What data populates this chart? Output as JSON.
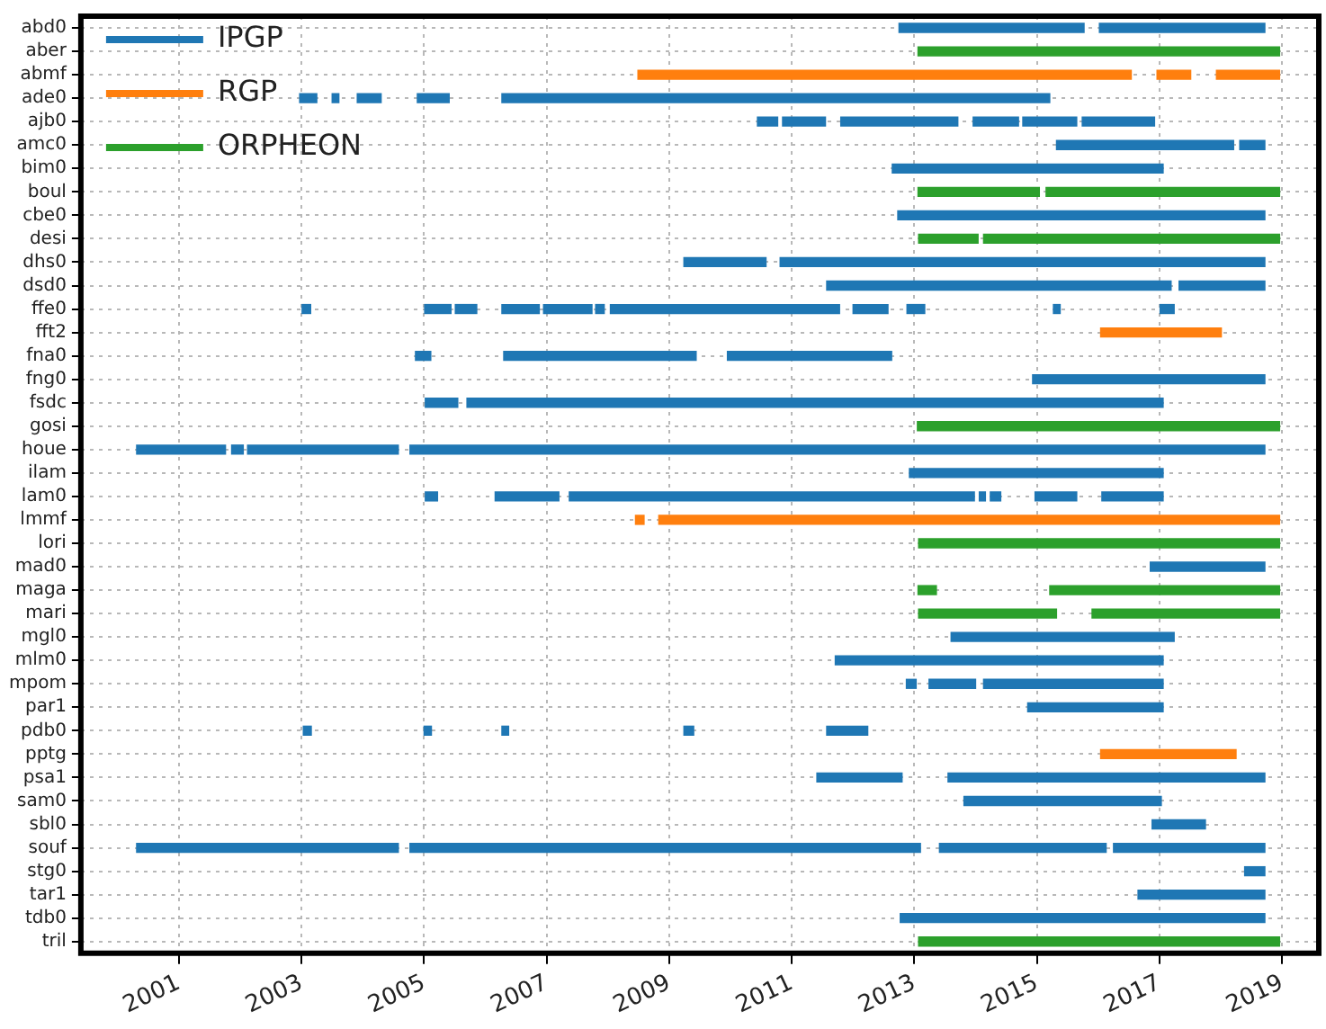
{
  "chart_data": {
    "type": "bar",
    "orientation": "horizontal",
    "legend": "top left",
    "grid": true,
    "categories": [
      "abd0",
      "aber",
      "abmf",
      "ade0",
      "ajb0",
      "amc0",
      "bim0",
      "boul",
      "cbe0",
      "desi",
      "dhs0",
      "dsd0",
      "ffe0",
      "fft2",
      "fna0",
      "fng0",
      "fsdc",
      "gosi",
      "houe",
      "ilam",
      "lam0",
      "lmmf",
      "lori",
      "mad0",
      "maga",
      "mari",
      "mgl0",
      "mlm0",
      "mpom",
      "par1",
      "pdb0",
      "pptg",
      "psa1",
      "sam0",
      "sbl0",
      "souf",
      "stg0",
      "tar1",
      "tdb0",
      "tril"
    ],
    "xlim": [
      1999.4,
      2019.6
    ],
    "xticks": [
      2001,
      2003,
      2005,
      2007,
      2009,
      2011,
      2013,
      2015,
      2017,
      2019
    ],
    "series": [
      {
        "name": "IPGP",
        "color": "#1f77b4",
        "base": [
          2012.75,
          null,
          null,
          2002.97,
          2010.44,
          2015.32,
          2012.64,
          null,
          2012.73,
          null,
          2009.24,
          2011.57,
          2003.01,
          null,
          2004.86,
          2014.93,
          2005.02,
          null,
          2000.31,
          2012.92,
          2005.02,
          null,
          null,
          2016.85,
          null,
          null,
          2013.6,
          2011.71,
          2012.87,
          2014.85,
          2003.03,
          null,
          2011.41,
          2013.81,
          2016.88,
          2000.31,
          2018.39,
          2016.65,
          2012.77,
          null
        ],
        "values": [
          3.02,
          null,
          null,
          0.28,
          0.33,
          2.89,
          4.42,
          null,
          5.99,
          null,
          1.34,
          5.62,
          0.14,
          null,
          0.25,
          3.79,
          0.53,
          null,
          1.45,
          4.14,
          0.2,
          null,
          null,
          1.87,
          null,
          null,
          3.64,
          5.35,
          0.16,
          2.21,
          0.13,
          null,
          1.39,
          3.22,
          0.87,
          4.27,
          0.33,
          2.07,
          5.95,
          null
        ]
      },
      {
        "name": "RGP",
        "color": "#ff7f0e",
        "base": [
          null,
          null,
          2008.49,
          null,
          null,
          null,
          null,
          null,
          null,
          null,
          null,
          null,
          null,
          2016.04,
          null,
          null,
          null,
          null,
          null,
          null,
          null,
          2008.45,
          null,
          null,
          null,
          null,
          null,
          null,
          null,
          null,
          null,
          2016.04,
          null,
          null,
          null,
          null,
          null,
          null,
          null,
          null
        ],
        "values": [
          null,
          null,
          8.05,
          null,
          null,
          null,
          null,
          null,
          null,
          null,
          null,
          null,
          null,
          1.97,
          null,
          null,
          null,
          null,
          null,
          null,
          null,
          0.14,
          null,
          null,
          null,
          null,
          null,
          null,
          null,
          null,
          null,
          2.21,
          null,
          null,
          null,
          null,
          null,
          null,
          null,
          null
        ]
      },
      {
        "name": "ORPHEON",
        "color": "#2ca02c",
        "base": [
          null,
          2013.06,
          null,
          null,
          null,
          null,
          null,
          2013.06,
          null,
          2013.07,
          null,
          null,
          null,
          null,
          null,
          null,
          null,
          2013.05,
          null,
          null,
          null,
          null,
          2013.07,
          null,
          2013.06,
          2013.07,
          null,
          null,
          null,
          null,
          null,
          null,
          null,
          null,
          null,
          null,
          null,
          null,
          null,
          2013.07
        ],
        "values": [
          null,
          5.9,
          null,
          null,
          null,
          null,
          null,
          1.98,
          null,
          0.97,
          null,
          null,
          null,
          null,
          null,
          null,
          null,
          5.91,
          null,
          null,
          null,
          null,
          5.89,
          null,
          0.3,
          2.25,
          null,
          null,
          null,
          null,
          null,
          null,
          null,
          null,
          null,
          null,
          null,
          null,
          null,
          5.89
        ]
      },
      {
        "color": "#1f77b4",
        "base": [
          2016.02,
          null,
          null,
          2003.5,
          2010.85,
          2018.31,
          null,
          null,
          null,
          null,
          2010.81,
          2017.32,
          2005.01,
          null,
          2006.3,
          null,
          2005.7,
          null,
          2001.86,
          null,
          2006.16,
          null,
          null,
          null,
          null,
          null,
          null,
          null,
          2013.24,
          null,
          2005.0,
          null,
          2013.55,
          null,
          null,
          2004.77,
          null,
          null,
          null,
          null
        ],
        "values": [
          2.7,
          null,
          null,
          0.11,
          0.7,
          0.41,
          null,
          null,
          null,
          null,
          7.91,
          1.4,
          0.43,
          null,
          3.14,
          null,
          11.36,
          null,
          0.19,
          null,
          1.04,
          null,
          null,
          null,
          null,
          null,
          null,
          null,
          0.76,
          null,
          0.12,
          null,
          5.17,
          null,
          null,
          8.33,
          null,
          null,
          null,
          null
        ]
      },
      {
        "color": "#1f77b4",
        "base": [
          null,
          null,
          null,
          2003.91,
          2011.8,
          null,
          null,
          null,
          null,
          null,
          null,
          null,
          2005.51,
          null,
          2009.95,
          null,
          null,
          null,
          2002.12,
          null,
          2007.37,
          null,
          null,
          null,
          null,
          null,
          null,
          null,
          2014.13,
          null,
          2006.27,
          null,
          null,
          null,
          null,
          2013.41,
          null,
          null,
          null,
          null
        ],
        "values": [
          null,
          null,
          null,
          0.39,
          1.91,
          null,
          null,
          null,
          null,
          null,
          null,
          null,
          0.35,
          null,
          2.68,
          null,
          null,
          null,
          2.46,
          null,
          6.61,
          null,
          null,
          null,
          null,
          null,
          null,
          null,
          2.93,
          null,
          0.11,
          null,
          null,
          null,
          null,
          2.72,
          null,
          null,
          null,
          null
        ]
      },
      {
        "color": "#1f77b4",
        "base": [
          null,
          null,
          null,
          2004.89,
          2013.96,
          null,
          null,
          null,
          null,
          null,
          null,
          null,
          2006.27,
          null,
          null,
          null,
          null,
          null,
          2004.77,
          null,
          2014.06,
          null,
          null,
          null,
          null,
          null,
          null,
          null,
          null,
          null,
          2009.24,
          null,
          null,
          null,
          null,
          2016.25,
          null,
          null,
          null,
          null
        ],
        "values": [
          null,
          null,
          null,
          0.52,
          0.74,
          null,
          null,
          null,
          null,
          null,
          null,
          null,
          0.61,
          null,
          null,
          null,
          null,
          null,
          13.95,
          null,
          0.1,
          null,
          null,
          null,
          null,
          null,
          null,
          null,
          null,
          null,
          0.16,
          null,
          null,
          null,
          null,
          2.47,
          null,
          null,
          null,
          null
        ]
      },
      {
        "color": "#1f77b4",
        "base": [
          null,
          null,
          null,
          2006.27,
          2014.77,
          null,
          null,
          null,
          null,
          null,
          null,
          null,
          2006.95,
          null,
          null,
          null,
          null,
          null,
          null,
          null,
          2014.24,
          null,
          null,
          null,
          null,
          null,
          null,
          null,
          null,
          null,
          2011.57,
          null,
          null,
          null,
          null,
          null,
          null,
          null,
          null,
          null
        ],
        "values": [
          null,
          null,
          null,
          8.94,
          0.88,
          null,
          null,
          null,
          null,
          null,
          null,
          null,
          0.79,
          null,
          null,
          null,
          null,
          null,
          null,
          null,
          0.17,
          null,
          null,
          null,
          null,
          null,
          null,
          null,
          null,
          null,
          0.67,
          null,
          null,
          null,
          null,
          null,
          null,
          null,
          null,
          null
        ]
      },
      {
        "color": "#1f77b4",
        "base": [
          null,
          null,
          null,
          null,
          2015.74,
          null,
          null,
          null,
          null,
          null,
          null,
          null,
          2007.8,
          null,
          null,
          null,
          null,
          null,
          null,
          null,
          2014.97,
          null,
          null,
          null,
          null,
          null,
          null,
          null,
          null,
          null,
          null,
          null,
          null,
          null,
          null,
          null,
          null,
          null,
          null,
          null
        ],
        "values": [
          null,
          null,
          null,
          null,
          1.18,
          null,
          null,
          null,
          null,
          null,
          null,
          null,
          0.14,
          null,
          null,
          null,
          null,
          null,
          null,
          null,
          0.68,
          null,
          null,
          null,
          null,
          null,
          null,
          null,
          null,
          null,
          null,
          null,
          null,
          null,
          null,
          null,
          null,
          null,
          null,
          null
        ]
      },
      {
        "color": "#1f77b4",
        "base": [
          null,
          null,
          null,
          null,
          null,
          null,
          null,
          null,
          null,
          null,
          null,
          null,
          2008.04,
          null,
          null,
          null,
          null,
          null,
          null,
          null,
          2016.06,
          null,
          null,
          null,
          null,
          null,
          null,
          null,
          null,
          null,
          null,
          null,
          null,
          null,
          null,
          null,
          null,
          null,
          null,
          null
        ],
        "values": [
          null,
          null,
          null,
          null,
          null,
          null,
          null,
          null,
          null,
          null,
          null,
          null,
          3.74,
          null,
          null,
          null,
          null,
          null,
          null,
          null,
          1.0,
          null,
          null,
          null,
          null,
          null,
          null,
          null,
          null,
          null,
          null,
          null,
          null,
          null,
          null,
          null,
          null,
          null,
          null,
          null
        ]
      },
      {
        "color": "#1f77b4",
        "base": [
          null,
          null,
          null,
          null,
          null,
          null,
          null,
          null,
          null,
          null,
          null,
          null,
          2012.0,
          null,
          null,
          null,
          null,
          null,
          null,
          null,
          null,
          null,
          null,
          null,
          null,
          null,
          null,
          null,
          null,
          null,
          null,
          null,
          null,
          null,
          null,
          null,
          null,
          null,
          null,
          null
        ],
        "values": [
          null,
          null,
          null,
          null,
          null,
          null,
          null,
          null,
          null,
          null,
          null,
          null,
          0.57,
          null,
          null,
          null,
          null,
          null,
          null,
          null,
          null,
          null,
          null,
          null,
          null,
          null,
          null,
          null,
          null,
          null,
          null,
          null,
          null,
          null,
          null,
          null,
          null,
          null,
          null,
          null
        ]
      },
      {
        "color": "#1f77b4",
        "base": [
          null,
          null,
          null,
          null,
          null,
          null,
          null,
          null,
          null,
          null,
          null,
          null,
          2012.88,
          null,
          null,
          null,
          null,
          null,
          null,
          null,
          null,
          null,
          null,
          null,
          null,
          null,
          null,
          null,
          null,
          null,
          null,
          null,
          null,
          null,
          null,
          null,
          null,
          null,
          null,
          null
        ],
        "values": [
          null,
          null,
          null,
          null,
          null,
          null,
          null,
          null,
          null,
          null,
          null,
          null,
          0.29,
          null,
          null,
          null,
          null,
          null,
          null,
          null,
          null,
          null,
          null,
          null,
          null,
          null,
          null,
          null,
          null,
          null,
          null,
          null,
          null,
          null,
          null,
          null,
          null,
          null,
          null,
          null
        ]
      },
      {
        "color": "#1f77b4",
        "base": [
          null,
          null,
          null,
          null,
          null,
          null,
          null,
          null,
          null,
          null,
          null,
          null,
          2015.27,
          null,
          null,
          null,
          null,
          null,
          null,
          null,
          null,
          null,
          null,
          null,
          null,
          null,
          null,
          null,
          null,
          null,
          null,
          null,
          null,
          null,
          null,
          null,
          null,
          null,
          null,
          null
        ],
        "values": [
          null,
          null,
          null,
          null,
          null,
          null,
          null,
          null,
          null,
          null,
          null,
          null,
          0.11,
          null,
          null,
          null,
          null,
          null,
          null,
          null,
          null,
          null,
          null,
          null,
          null,
          null,
          null,
          null,
          null,
          null,
          null,
          null,
          null,
          null,
          null,
          null,
          null,
          null,
          null,
          null
        ]
      },
      {
        "color": "#1f77b4",
        "base": [
          null,
          null,
          null,
          null,
          null,
          null,
          null,
          null,
          null,
          null,
          null,
          null,
          2017.01,
          null,
          null,
          null,
          null,
          null,
          null,
          null,
          null,
          null,
          null,
          null,
          null,
          null,
          null,
          null,
          null,
          null,
          null,
          null,
          null,
          null,
          null,
          null,
          null,
          null,
          null,
          null
        ],
        "values": [
          null,
          null,
          null,
          null,
          null,
          null,
          null,
          null,
          null,
          null,
          null,
          null,
          0.23,
          null,
          null,
          null,
          null,
          null,
          null,
          null,
          null,
          null,
          null,
          null,
          null,
          null,
          null,
          null,
          null,
          null,
          null,
          null,
          null,
          null,
          null,
          null,
          null,
          null,
          null,
          null
        ]
      },
      {
        "color": "#ff7f0e",
        "base": [
          null,
          null,
          2016.96,
          null,
          null,
          null,
          null,
          null,
          null,
          null,
          null,
          null,
          null,
          null,
          null,
          null,
          null,
          null,
          null,
          null,
          null,
          2008.83,
          null,
          null,
          null,
          null,
          null,
          null,
          null,
          null,
          null,
          null,
          null,
          null,
          null,
          null,
          null,
          null,
          null,
          null
        ],
        "values": [
          null,
          null,
          0.55,
          null,
          null,
          null,
          null,
          null,
          null,
          null,
          null,
          null,
          null,
          null,
          null,
          null,
          null,
          null,
          null,
          null,
          null,
          10.13,
          null,
          null,
          null,
          null,
          null,
          null,
          null,
          null,
          null,
          null,
          null,
          null,
          null,
          null,
          null,
          null,
          null,
          null
        ]
      },
      {
        "color": "#ff7f0e",
        "base": [
          null,
          null,
          2017.93,
          null,
          null,
          null,
          null,
          null,
          null,
          null,
          null,
          null,
          null,
          null,
          null,
          null,
          null,
          null,
          null,
          null,
          null,
          null,
          null,
          null,
          null,
          null,
          null,
          null,
          null,
          null,
          null,
          null,
          null,
          null,
          null,
          null,
          null,
          null,
          null,
          null
        ],
        "values": [
          null,
          null,
          1.03,
          null,
          null,
          null,
          null,
          null,
          null,
          null,
          null,
          null,
          null,
          null,
          null,
          null,
          null,
          null,
          null,
          null,
          null,
          null,
          null,
          null,
          null,
          null,
          null,
          null,
          null,
          null,
          null,
          null,
          null,
          null,
          null,
          null,
          null,
          null,
          null,
          null
        ]
      },
      {
        "color": "#2ca02c",
        "base": [
          null,
          null,
          null,
          null,
          null,
          null,
          null,
          2015.15,
          null,
          2014.13,
          null,
          null,
          null,
          null,
          null,
          null,
          null,
          null,
          null,
          null,
          null,
          null,
          null,
          null,
          2015.21,
          2015.9,
          null,
          null,
          null,
          null,
          null,
          null,
          null,
          null,
          null,
          null,
          null,
          null,
          null,
          null
        ],
        "values": [
          null,
          null,
          null,
          null,
          null,
          null,
          null,
          3.81,
          null,
          4.83,
          null,
          null,
          null,
          null,
          null,
          null,
          null,
          null,
          null,
          null,
          null,
          null,
          null,
          null,
          3.75,
          3.06,
          null,
          null,
          null,
          null,
          null,
          null,
          null,
          null,
          null,
          null,
          null,
          null,
          null,
          null
        ]
      }
    ]
  }
}
